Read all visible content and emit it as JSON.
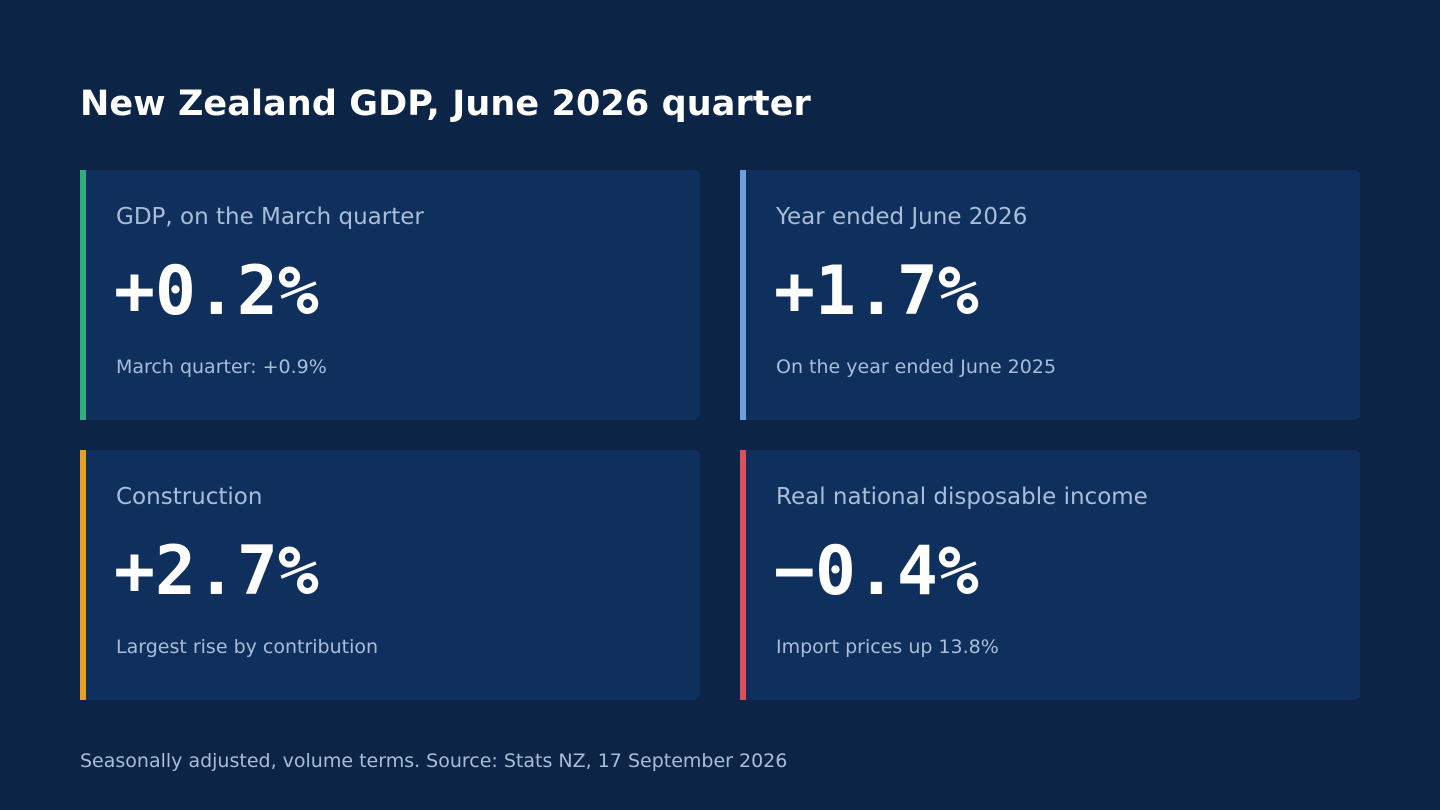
{
  "title": "New Zealand GDP, June 2026 quarter",
  "cards": [
    {
      "label": "GDP, on the March quarter",
      "value": "+0.2%",
      "note": "March quarter: +0.9%",
      "accent_color": "#2fae7f"
    },
    {
      "label": "Year ended June 2026",
      "value": "+1.7%",
      "note": "On the year ended June 2025",
      "accent_color": "#6fa0dc"
    },
    {
      "label": "Construction",
      "value": "+2.7%",
      "note": "Largest rise by contribution",
      "accent_color": "#e6a21e"
    },
    {
      "label": "Real national disposable income",
      "value": "−0.4%",
      "note": "Import prices up 13.8%",
      "accent_color": "#d9515a"
    }
  ],
  "footer": "Seasonally adjusted, volume terms. Source: Stats NZ, 17 September 2026",
  "colors": {
    "background": "#0c2446",
    "card": "#0f2f5c",
    "muted_text": "#a9bdd8"
  }
}
